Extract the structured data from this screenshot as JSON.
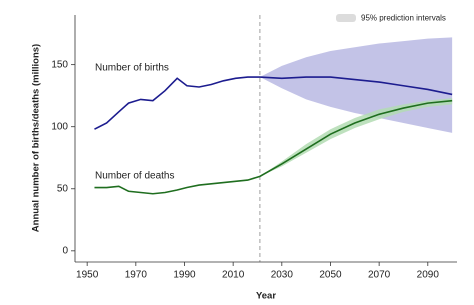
{
  "chart_data": {
    "type": "line",
    "x_label": "Year",
    "y_label": "Annual number of births/deaths (millions)",
    "x": [
      1953,
      1958,
      1963,
      1967,
      1972,
      1977,
      1982,
      1987,
      1991,
      1996,
      2001,
      2006,
      2011,
      2016,
      2021,
      2030,
      2040,
      2050,
      2060,
      2070,
      2080,
      2090,
      2100
    ],
    "series": [
      {
        "name": "Number of births",
        "color": "#1c1c8f",
        "values": [
          98,
          103,
          112,
          119,
          122,
          121,
          129,
          139,
          133,
          132,
          134,
          137,
          139,
          140,
          140,
          139,
          140,
          140,
          138,
          136,
          133,
          130,
          126
        ],
        "band_lower": [
          null,
          null,
          null,
          null,
          null,
          null,
          null,
          null,
          null,
          null,
          null,
          null,
          null,
          null,
          140,
          131,
          122,
          116,
          111,
          107,
          103,
          99,
          95
        ],
        "band_upper": [
          null,
          null,
          null,
          null,
          null,
          null,
          null,
          null,
          null,
          null,
          null,
          null,
          null,
          null,
          140,
          149,
          156,
          161,
          164,
          167,
          169,
          171,
          172
        ],
        "band_color": "#b9b9e3"
      },
      {
        "name": "Number of deaths",
        "color": "#1f6e1f",
        "values": [
          51,
          51,
          52,
          48,
          47,
          46,
          47,
          49,
          51,
          53,
          54,
          55,
          56,
          57,
          60,
          70,
          82,
          94,
          103,
          110,
          115,
          119,
          121
        ],
        "band_lower": [
          null,
          null,
          null,
          null,
          null,
          null,
          null,
          null,
          null,
          null,
          null,
          null,
          null,
          null,
          60,
          68,
          79,
          90,
          99,
          106,
          112,
          116,
          118
        ],
        "band_upper": [
          null,
          null,
          null,
          null,
          null,
          null,
          null,
          null,
          null,
          null,
          null,
          null,
          null,
          null,
          60,
          72,
          86,
          98,
          107,
          114,
          118,
          121,
          123
        ],
        "band_color": "#b3dcb3"
      }
    ],
    "band_legend": "95% prediction intervals",
    "band_legend_color": "#dcdcdc",
    "projection_start": 2021,
    "xlim": [
      1945,
      2102
    ],
    "ylim": [
      -9,
      190
    ],
    "xticks": [
      1950,
      1970,
      1990,
      2010,
      2030,
      2050,
      2070,
      2090
    ],
    "yticks": [
      0,
      50,
      100,
      150
    ]
  }
}
